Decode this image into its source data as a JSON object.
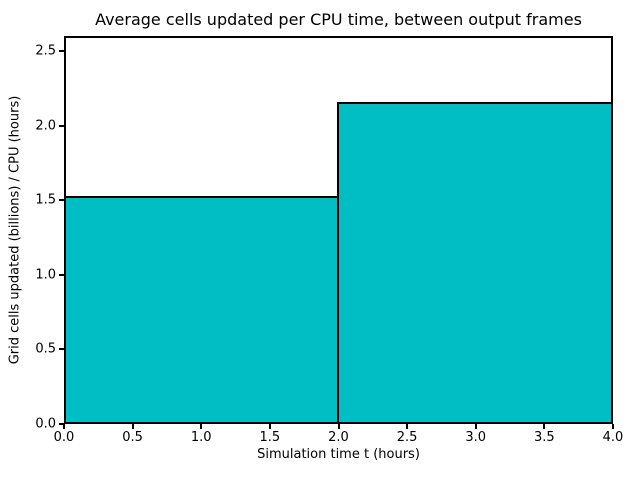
{
  "chart_data": {
    "type": "bar",
    "subtype": "step-histogram",
    "title": "Average cells updated per CPU time, between output frames",
    "xlabel": "Simulation time t (hours)",
    "ylabel": "Grid cells updated (billions) / CPU (hours)",
    "bin_edges": [
      0,
      2,
      4
    ],
    "values": [
      1.53,
      2.16
    ],
    "xlim": [
      0,
      4
    ],
    "ylim": [
      0,
      2.6
    ],
    "x_tick_labels": [
      "0.0",
      "0.5",
      "1.0",
      "1.5",
      "2.0",
      "2.5",
      "3.0",
      "3.5",
      "4.0"
    ],
    "y_tick_labels": [
      "0.0",
      "0.5",
      "1.0",
      "1.5",
      "2.0",
      "2.5"
    ],
    "grid": false,
    "legend": null,
    "colors": {
      "bar_fill": "#00bec4",
      "bar_edge": "#000000",
      "text": "#000000",
      "background": "#ffffff"
    }
  }
}
